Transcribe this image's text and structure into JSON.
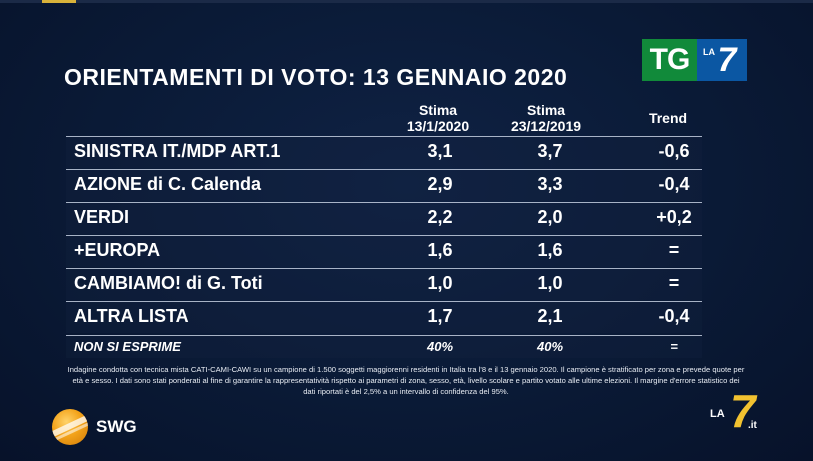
{
  "title": "ORIENTAMENTI DI VOTO: 13 GENNAIO 2020",
  "logo_tg": {
    "left": "TG",
    "la": "LA",
    "seven": "7"
  },
  "columns": {
    "c1_a": "Stima",
    "c1_b": "13/1/2020",
    "c2_a": "Stima",
    "c2_b": "23/12/2019",
    "c3": "Trend"
  },
  "rows": [
    {
      "party": "SINISTRA IT./MDP ART.1",
      "s1": "3,1",
      "s2": "3,7",
      "trend": "-0,6"
    },
    {
      "party": "AZIONE di C. Calenda",
      "s1": "2,9",
      "s2": "3,3",
      "trend": "-0,4"
    },
    {
      "party": "VERDI",
      "s1": "2,2",
      "s2": "2,0",
      "trend": "+0,2"
    },
    {
      "party": "+EUROPA",
      "s1": "1,6",
      "s2": "1,6",
      "trend": "="
    },
    {
      "party": "CAMBIAMO! di G. Toti",
      "s1": "1,0",
      "s2": "1,0",
      "trend": "="
    },
    {
      "party": "ALTRA LISTA",
      "s1": "1,7",
      "s2": "2,1",
      "trend": "-0,4"
    },
    {
      "party": "NON SI ESPRIME",
      "s1": "40%",
      "s2": "40%",
      "trend": "="
    }
  ],
  "footnote": "Indagine condotta con tecnica mista CATI-CAMI-CAWI su un campione di 1.500 soggetti maggiorenni residenti in Italia tra l'8 e il 13 gennaio 2020. Il campione è stratificato per zona e prevede quote per età e sesso. I dati sono stati ponderati al fine di garantire la rappresentatività rispetto ai parametri di zona, sesso, età, livello scolare e partito votato alle ultime elezioni. Il margine d'errore statistico dei dati riportati è del 2,5% a un intervallo di confidenza del 95%.",
  "swg": "SWG",
  "la7_bug": {
    "la": "LA",
    "seven": "7",
    "it": ".it"
  },
  "colors": {
    "background": "#0a1a36",
    "tg_green": "#118a3a",
    "la7_blue": "#0b57a3",
    "swg_orange": "#f3a31a",
    "la7_yellow": "#f2c230"
  }
}
